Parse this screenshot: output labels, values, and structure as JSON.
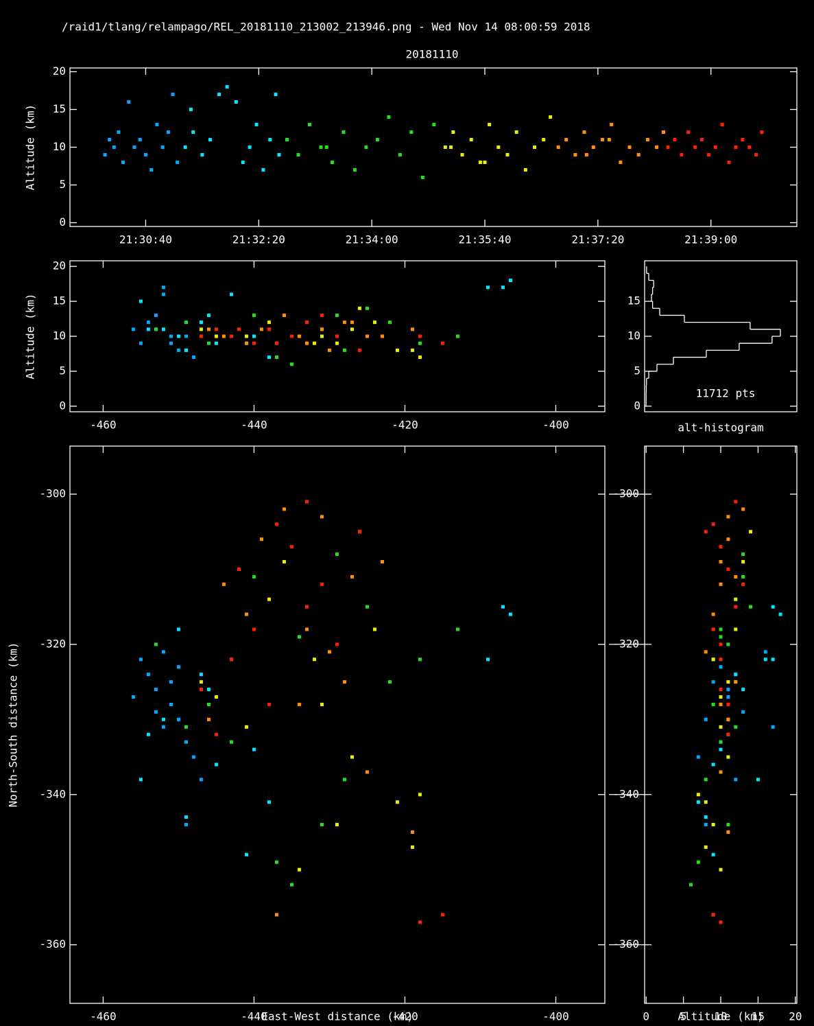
{
  "chart_data": {
    "type": "lma",
    "header": "/raid1/tlang/relampago/REL_20181110_213002_213946.png - Wed Nov 14 08:00:59 2018",
    "title": "20181110",
    "time_height": {
      "ylabel": "Altitude (km)",
      "xlim": [
        77373,
        78016
      ],
      "xticks": [
        {
          "value": 77440,
          "label": "21:30:40"
        },
        {
          "value": 77540,
          "label": "21:32:20"
        },
        {
          "value": 77640,
          "label": "21:34:00"
        },
        {
          "value": 77740,
          "label": "21:35:40"
        },
        {
          "value": 77840,
          "label": "21:37:20"
        },
        {
          "value": 77940,
          "label": "21:39:00"
        }
      ],
      "ylim": [
        -0.5,
        20.5
      ],
      "yticks": [
        0,
        5,
        10,
        15,
        20
      ]
    },
    "ew_alt": {
      "ylabel": "Altitude (km)",
      "xlim": [
        -464.4,
        -393.5
      ],
      "xticks": [
        -460,
        -440,
        -420,
        -400
      ],
      "ylim": [
        -0.8,
        20.8
      ],
      "yticks": [
        0,
        5,
        10,
        15,
        20
      ]
    },
    "histogram": {
      "label": "alt-histogram",
      "count_label": "11712 pts",
      "bins": [
        0,
        1,
        2,
        3,
        4,
        5,
        6,
        7,
        8,
        9,
        10,
        11,
        12,
        13,
        14,
        15,
        16,
        17,
        18,
        19,
        20
      ],
      "counts": [
        2,
        3,
        5,
        10,
        50,
        200,
        500,
        1100,
        1700,
        2300,
        2452,
        1900,
        700,
        250,
        120,
        100,
        120,
        140,
        50,
        10
      ],
      "ylim": [
        -0.8,
        20.8
      ],
      "yticks": [
        0,
        5,
        10,
        15
      ]
    },
    "plan": {
      "xlabel": "East-West distance (km)",
      "ylabel": "North-South distance (km)",
      "xlim": [
        -464.4,
        -393.5
      ],
      "xticks": [
        -460,
        -440,
        -420,
        -400
      ],
      "ylim": [
        -367.8,
        -293.6
      ],
      "yticks": [
        -300,
        -320,
        -340,
        -360
      ]
    },
    "alt_ns": {
      "xlabel": "Altitude (km)",
      "xlim": [
        -0.2,
        20.2
      ],
      "xticks": [
        0,
        5,
        10,
        15,
        20
      ],
      "ylim": [
        -367.8,
        -293.6
      ],
      "yticks": [
        -300,
        -320,
        -340,
        -360
      ]
    },
    "sources": [
      {
        "color": "#00a8ff",
        "time": [
          77404,
          77408,
          77412,
          77416,
          77420,
          77425,
          77430,
          77435,
          77440,
          77445,
          77450,
          77455,
          77460,
          77464,
          77468
        ],
        "ew": [
          -455,
          -453,
          -451,
          -454,
          -450,
          -452,
          -449,
          -456,
          -451,
          -448,
          -453,
          -450,
          -447,
          -452,
          -449
        ],
        "ns": [
          -322,
          -326,
          -328,
          -324,
          -330,
          -321,
          -333,
          -327,
          -325,
          -335,
          -329,
          -323,
          -338,
          -331,
          -344
        ],
        "alt": [
          9,
          11,
          10,
          12,
          8,
          16,
          10,
          11,
          9,
          7,
          13,
          10,
          12,
          17,
          8
        ]
      },
      {
        "color": "#00e8ff",
        "time": [
          77475,
          77482,
          77490,
          77497,
          77505,
          77512,
          77520,
          77526,
          77532,
          77538,
          77544,
          77550,
          77555,
          77558,
          77480
        ],
        "ew": [
          -450,
          -447,
          -445,
          -452,
          -407,
          -406,
          -443,
          -449,
          -440,
          -446,
          -438,
          -454,
          -409,
          -441,
          -455
        ],
        "ns": [
          -318,
          -324,
          -336,
          -330,
          -315,
          -316,
          -322,
          -343,
          -334,
          -326,
          -341,
          -332,
          -322,
          -348,
          -338
        ],
        "alt": [
          10,
          12,
          9,
          11,
          17,
          18,
          16,
          8,
          10,
          13,
          7,
          11,
          17,
          9,
          15
        ]
      },
      {
        "color": "#20e020",
        "time": [
          77565,
          77575,
          77585,
          77595,
          77605,
          77615,
          77625,
          77635,
          77645,
          77655,
          77665,
          77675,
          77685,
          77695,
          77600
        ],
        "ew": [
          -453,
          -446,
          -440,
          -434,
          -428,
          -422,
          -437,
          -443,
          -431,
          -425,
          -418,
          -449,
          -435,
          -429,
          -413
        ],
        "ns": [
          -320,
          -328,
          -311,
          -319,
          -338,
          -325,
          -349,
          -333,
          -344,
          -315,
          -322,
          -331,
          -352,
          -308,
          -318
        ],
        "alt": [
          11,
          9,
          13,
          10,
          8,
          12,
          7,
          10,
          11,
          14,
          9,
          12,
          6,
          13,
          10
        ]
      },
      {
        "color": "#e8f000",
        "time": [
          77705,
          77712,
          77720,
          77728,
          77736,
          77744,
          77752,
          77760,
          77768,
          77776,
          77784,
          77792,
          77798,
          77740,
          77710
        ],
        "ew": [
          -445,
          -438,
          -432,
          -427,
          -421,
          -436,
          -441,
          -429,
          -424,
          -418,
          -434,
          -447,
          -426,
          -419,
          -431
        ],
        "ns": [
          -327,
          -314,
          -322,
          -335,
          -341,
          -309,
          -331,
          -344,
          -318,
          -340,
          -350,
          -325,
          -305,
          -347,
          -328
        ],
        "alt": [
          10,
          12,
          9,
          11,
          8,
          13,
          10,
          9,
          12,
          7,
          10,
          11,
          14,
          8,
          10
        ]
      },
      {
        "color": "#ff9000",
        "time": [
          77805,
          77812,
          77820,
          77828,
          77836,
          77844,
          77852,
          77860,
          77868,
          77876,
          77884,
          77892,
          77898,
          77830,
          77850
        ],
        "ew": [
          -444,
          -439,
          -433,
          -428,
          -423,
          -446,
          -436,
          -430,
          -425,
          -441,
          -419,
          -434,
          -427,
          -437,
          -431
        ],
        "ns": [
          -312,
          -306,
          -318,
          -325,
          -309,
          -330,
          -302,
          -321,
          -337,
          -316,
          -345,
          -328,
          -311,
          -356,
          -303
        ],
        "alt": [
          10,
          11,
          9,
          12,
          10,
          11,
          13,
          8,
          10,
          9,
          11,
          10,
          12,
          9,
          11
        ]
      },
      {
        "color": "#ff2000",
        "time": [
          77902,
          77908,
          77914,
          77920,
          77926,
          77932,
          77938,
          77944,
          77950,
          77956,
          77962,
          77968,
          77974,
          77980,
          77985
        ],
        "ew": [
          -447,
          -442,
          -437,
          -433,
          -429,
          -445,
          -440,
          -435,
          -431,
          -426,
          -443,
          -438,
          -418,
          -415,
          -433
        ],
        "ns": [
          -326,
          -310,
          -304,
          -315,
          -320,
          -332,
          -318,
          -307,
          -312,
          -305,
          -322,
          -328,
          -357,
          -356,
          -301
        ],
        "alt": [
          10,
          11,
          9,
          12,
          10,
          11,
          9,
          10,
          13,
          8,
          10,
          11,
          10,
          9,
          12
        ]
      }
    ]
  }
}
